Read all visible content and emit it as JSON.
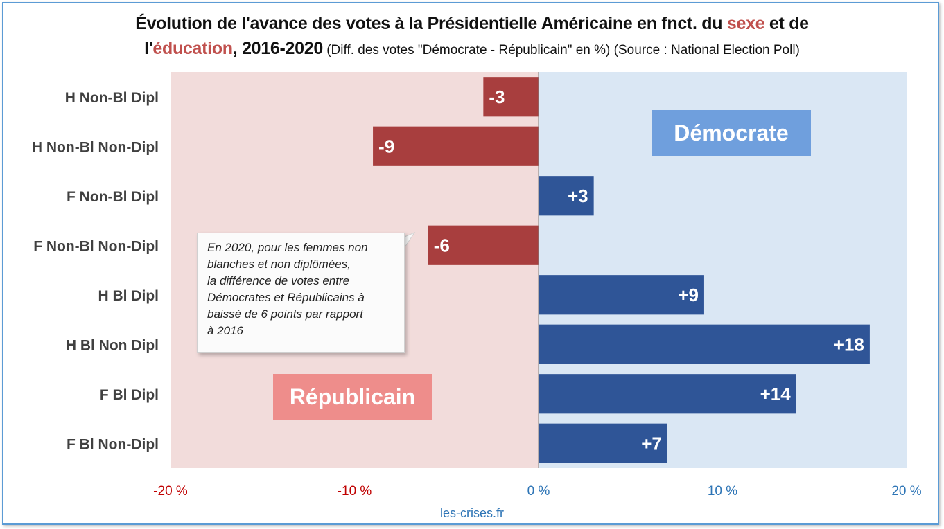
{
  "title": {
    "part1": "Évolution de l'avance des votes à la Présidentielle Américaine en fnct. du ",
    "sexe": "sexe",
    "part2": " et de",
    "line2_start": "l'",
    "education": "éducation",
    "part3": ", 2016-2020",
    "subtitle": " (Diff. des votes \"Démocrate - Républicain\" en %) (Source : National Election Poll)"
  },
  "footer": "les-crises.fr",
  "colors": {
    "republican_bar": "#a83e3e",
    "democrat_bar": "#2f5597",
    "republican_bg": "#f2dcdb",
    "democrat_bg": "#dae7f4",
    "republican_label_bg": "#ee8d8b",
    "democrat_label_bg": "#6f9fdd",
    "negative_tick": "#c00000",
    "positive_tick": "#2e75b6"
  },
  "annotation": {
    "lines": [
      "En 2020, pour les femmes non",
      "blanches et non diplômées,",
      "la différence de votes entre",
      "Démocrates et Républicains à",
      "baissé de 6 points par rapport",
      "à 2016"
    ]
  },
  "chart_data": {
    "type": "bar",
    "orientation": "horizontal",
    "categories": [
      "H Non-Bl Dipl",
      "H Non-Bl Non-Dipl",
      "F Non-Bl Dipl",
      "F Non-Bl Non-Dipl",
      "H Bl Dipl",
      "H Bl Non Dipl",
      "F Bl Dipl",
      "F Bl Non-Dipl"
    ],
    "values": [
      -3,
      -9,
      3,
      -6,
      9,
      18,
      14,
      7
    ],
    "data_labels": [
      "-3",
      "-9",
      "+3",
      "-6",
      "+9",
      "+18",
      "+14",
      "+7"
    ],
    "xlim": [
      -20,
      20
    ],
    "xticks": [
      -20,
      -10,
      0,
      10,
      20
    ],
    "xtick_labels": [
      "-20 %",
      "-10 %",
      "0 %",
      "10 %",
      "20 %"
    ],
    "region_labels": {
      "negative": "Républicain",
      "positive": "Démocrate"
    },
    "grid": false,
    "legend": "none"
  }
}
